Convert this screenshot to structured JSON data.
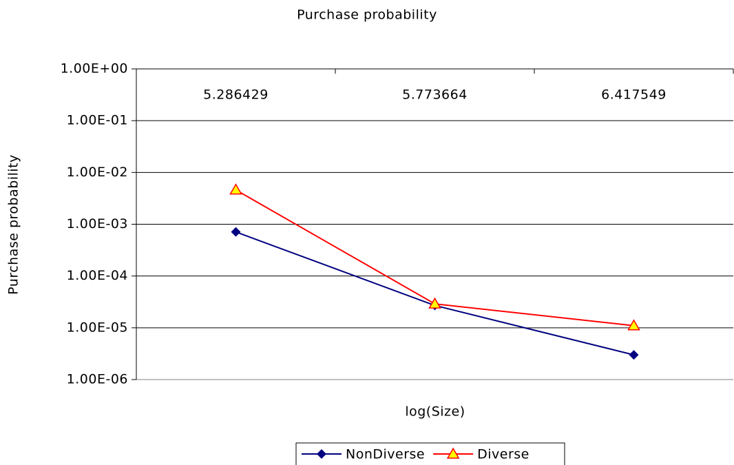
{
  "chart_data": {
    "type": "line",
    "title": "Purchase probability",
    "x_label": "log(Size)",
    "y_label": "Purchase probability",
    "categories": [
      "5.286429",
      "5.773664",
      "6.417549"
    ],
    "series": [
      {
        "name": "NonDiverse",
        "color": "#000080",
        "marker": "diamond",
        "values": [
          0.00071,
          2.7e-05,
          3e-06
        ]
      },
      {
        "name": "Diverse",
        "color": "#ff0000",
        "marker": "triangle",
        "marker_fill": "#ffff00",
        "values": [
          0.0046,
          2.9e-05,
          1.1e-05
        ]
      }
    ],
    "log_scale": true,
    "ylim": [
      1e-06,
      1
    ],
    "yticks": [
      {
        "value": 1,
        "label": "1.00E+00"
      },
      {
        "value": 0.1,
        "label": "1.00E-01"
      },
      {
        "value": 0.01,
        "label": "1.00E-02"
      },
      {
        "value": 0.001,
        "label": "1.00E-03"
      },
      {
        "value": 0.0001,
        "label": "1.00E-04"
      },
      {
        "value": 1e-05,
        "label": "1.00E-05"
      },
      {
        "value": 1e-06,
        "label": "1.00E-06"
      }
    ],
    "grid": true,
    "legend": "bottom"
  }
}
